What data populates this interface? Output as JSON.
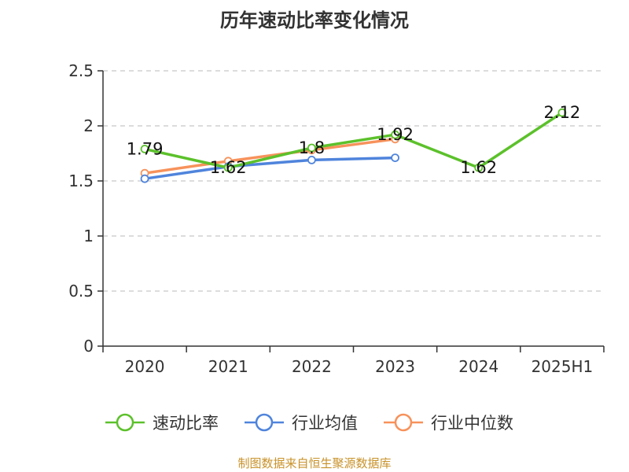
{
  "title": "历年速动比率变化情况",
  "footer": "制图数据来自恒生聚源数据库",
  "chart_data": {
    "type": "line",
    "title": "历年速动比率变化情况",
    "categories": [
      "2020",
      "2021",
      "2022",
      "2023",
      "2024",
      "2025H1"
    ],
    "ylim": [
      0,
      2.5
    ],
    "yticks": [
      0,
      0.5,
      1,
      1.5,
      2,
      2.5
    ],
    "grid": true,
    "legend_position": "bottom",
    "series": [
      {
        "name": "速动比率",
        "color": "#5cc12b",
        "values": [
          1.79,
          1.62,
          1.8,
          1.92,
          1.62,
          2.12
        ],
        "labels": true
      },
      {
        "name": "行业均值",
        "color": "#4f84dc",
        "values": [
          1.52,
          1.63,
          1.69,
          1.71,
          null,
          null
        ],
        "labels": false
      },
      {
        "name": "行业中位数",
        "color": "#f7925b",
        "values": [
          1.57,
          1.68,
          1.78,
          1.88,
          null,
          null
        ],
        "labels": false
      }
    ]
  }
}
